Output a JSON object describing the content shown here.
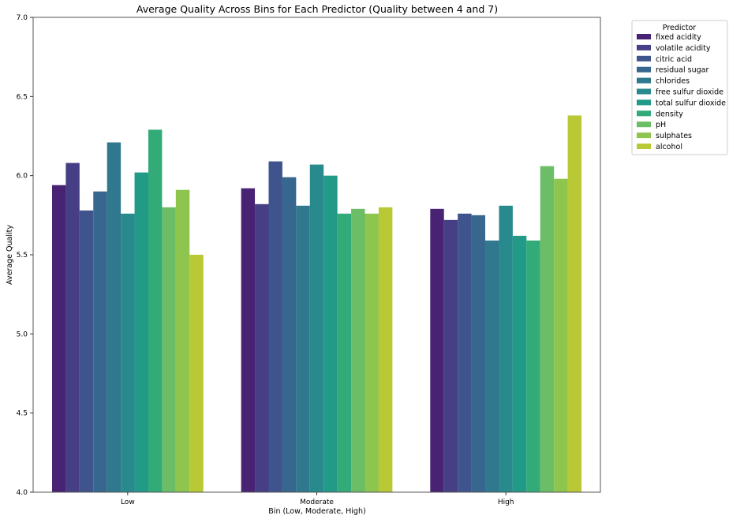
{
  "chart_data": {
    "type": "bar",
    "title": "Average Quality Across Bins for Each Predictor (Quality between 4 and 7)",
    "xlabel": "Bin (Low, Moderate, High)",
    "ylabel": "Average Quality",
    "ylim": [
      4.0,
      7.0
    ],
    "yticks": [
      "4.0",
      "4.5",
      "5.0",
      "5.5",
      "6.0",
      "6.5",
      "7.0"
    ],
    "categories": [
      "Low",
      "Moderate",
      "High"
    ],
    "legend_title": "Predictor",
    "legend_position": "outside-top-right",
    "grid": false,
    "series": [
      {
        "name": "fixed acidity",
        "color": "#482374",
        "values": [
          5.94,
          5.92,
          5.79
        ]
      },
      {
        "name": "volatile acidity",
        "color": "#463f86",
        "values": [
          6.08,
          5.82,
          5.72
        ]
      },
      {
        "name": "citric acid",
        "color": "#3f548c",
        "values": [
          5.78,
          6.09,
          5.76
        ]
      },
      {
        "name": "residual sugar",
        "color": "#37678e",
        "values": [
          5.9,
          5.99,
          5.75
        ]
      },
      {
        "name": "chlorides",
        "color": "#2f788e",
        "values": [
          6.21,
          5.81,
          5.59
        ]
      },
      {
        "name": "free sulfur dioxide",
        "color": "#288a8d",
        "values": [
          5.76,
          6.07,
          5.81
        ]
      },
      {
        "name": "total sulfur dioxide",
        "color": "#219b88",
        "values": [
          6.02,
          6.0,
          5.62
        ]
      },
      {
        "name": "density",
        "color": "#33ab78",
        "values": [
          6.29,
          5.76,
          5.59
        ]
      },
      {
        "name": "pH",
        "color": "#6bbd66",
        "values": [
          5.8,
          5.79,
          6.06
        ]
      },
      {
        "name": "sulphates",
        "color": "#8dc54f",
        "values": [
          5.91,
          5.76,
          5.98
        ]
      },
      {
        "name": "alcohol",
        "color": "#b9c935",
        "values": [
          5.5,
          5.8,
          6.38
        ]
      }
    ]
  }
}
